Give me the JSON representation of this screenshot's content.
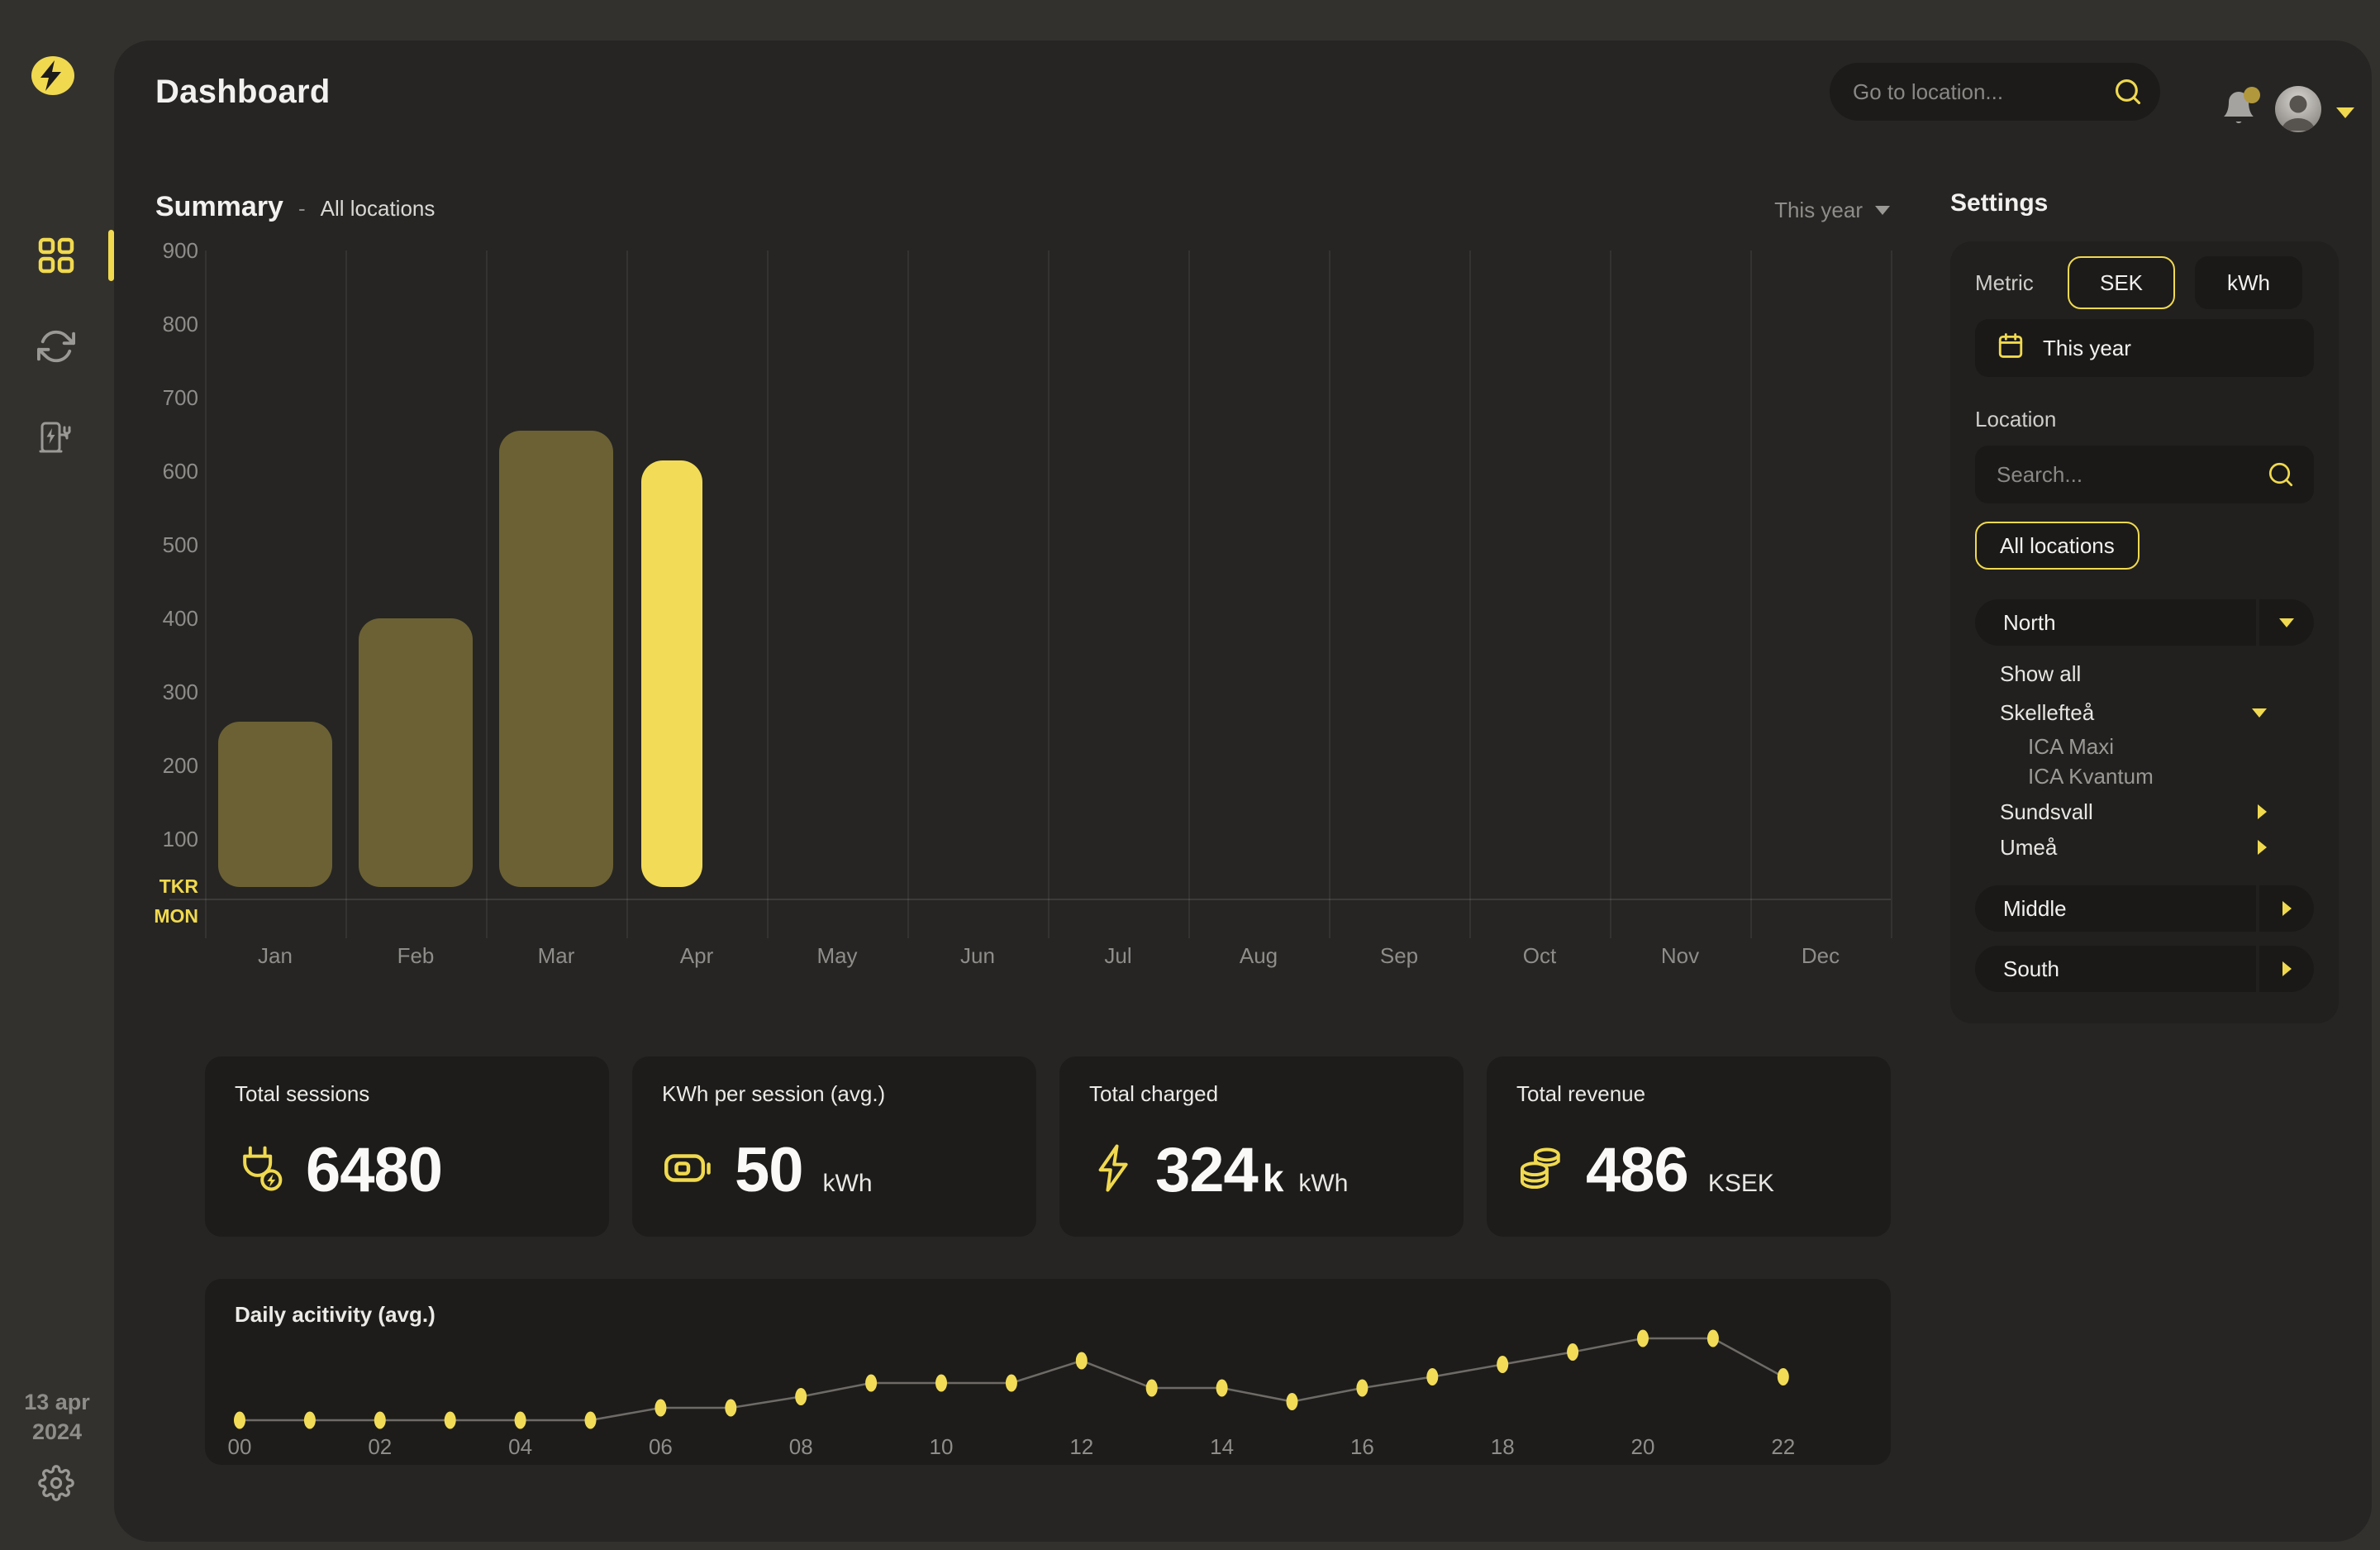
{
  "app": {
    "title": "Dashboard"
  },
  "topbar": {
    "search_placeholder": "Go to location..."
  },
  "sidebar": {
    "date_line1": "13 apr",
    "date_line2": "2024"
  },
  "summary": {
    "title": "Summary",
    "separator": "-",
    "subtitle": "All locations",
    "period_label": "This year"
  },
  "colors": {
    "accent": "#f0d94f",
    "bar": "#6b6134",
    "bar_highlight": "#f2dc57",
    "muted_text": "#8f8d8a",
    "card_bg": "#262523",
    "tile_bg": "#1d1c1a",
    "badge": "#b2983c"
  },
  "chart_data": [
    {
      "type": "bar",
      "title": "Summary",
      "categories": [
        "Jan",
        "Feb",
        "Mar",
        "Apr",
        "May",
        "Jun",
        "Jul",
        "Aug",
        "Sep",
        "Oct",
        "Nov",
        "Dec"
      ],
      "values": [
        260,
        400,
        655,
        615,
        null,
        null,
        null,
        null,
        null,
        null,
        null,
        null
      ],
      "highlight_category": "Apr",
      "bar_color": "#6b6134",
      "highlight_color": "#f2dc57",
      "ylabel": "TKR",
      "xlabel": "MON",
      "ylim": [
        0,
        900
      ],
      "yticks": [
        100,
        200,
        300,
        400,
        500,
        600,
        700,
        800,
        900
      ],
      "grid": "vertical"
    },
    {
      "type": "line",
      "title": "Daily acitivity (avg.)",
      "x": [
        "00",
        "01",
        "02",
        "03",
        "04",
        "05",
        "06",
        "07",
        "08",
        "09",
        "10",
        "11",
        "12",
        "13",
        "14",
        "15",
        "16",
        "17",
        "18",
        "19",
        "20",
        "21",
        "22"
      ],
      "values": [
        1,
        1,
        1,
        1,
        1,
        1,
        2,
        2,
        2.9,
        4,
        4,
        4,
        5.8,
        3.6,
        3.6,
        2.5,
        3.6,
        4.5,
        5.5,
        6.5,
        7.6,
        7.6,
        4.5
      ],
      "x_tick_labels": [
        "00",
        "02",
        "04",
        "06",
        "08",
        "10",
        "12",
        "14",
        "16",
        "18",
        "20",
        "22"
      ],
      "ylim": [
        0,
        8
      ],
      "point_color": "#f2dc57",
      "line_color": "#6e6b67",
      "legend": "none",
      "note_units": "relative activity (no y-axis shown)"
    }
  ],
  "stats": {
    "cards": [
      {
        "title": "Total sessions",
        "value": "6480",
        "suffix": "",
        "unit": "",
        "icon": "plug-bolt-icon"
      },
      {
        "title": "KWh per session (avg.)",
        "value": "50",
        "suffix": "",
        "unit": "kWh",
        "icon": "battery-icon"
      },
      {
        "title": "Total charged",
        "value": "324",
        "suffix": "k",
        "unit": "kWh",
        "icon": "bolt-icon"
      },
      {
        "title": "Total revenue",
        "value": "486",
        "suffix": "",
        "unit": "KSEK",
        "icon": "coins-icon"
      }
    ]
  },
  "daily": {
    "title": "Daily acitivity (avg.)"
  },
  "settings": {
    "title": "Settings",
    "metric_label": "Metric",
    "metric_options": [
      {
        "label": "SEK",
        "selected": true
      },
      {
        "label": "kWh",
        "selected": false
      }
    ],
    "period_button": "This year",
    "location_label": "Location",
    "search_placeholder": "Search...",
    "all_locations": "All locations",
    "tree": [
      {
        "label": "North",
        "type": "pill",
        "caret": "down"
      },
      {
        "label": "Show all",
        "type": "child",
        "caret": null
      },
      {
        "label": "Skellefteå",
        "type": "child",
        "caret": "down"
      },
      {
        "label": "ICA Maxi",
        "type": "grandchild",
        "caret": null
      },
      {
        "label": "ICA Kvantum",
        "type": "grandchild",
        "caret": null
      },
      {
        "label": "Sundsvall",
        "type": "child",
        "caret": "right"
      },
      {
        "label": "Umeå",
        "type": "child",
        "caret": "right"
      },
      {
        "label": "Middle",
        "type": "pill",
        "caret": "right"
      },
      {
        "label": "South",
        "type": "pill",
        "caret": "right"
      }
    ]
  }
}
